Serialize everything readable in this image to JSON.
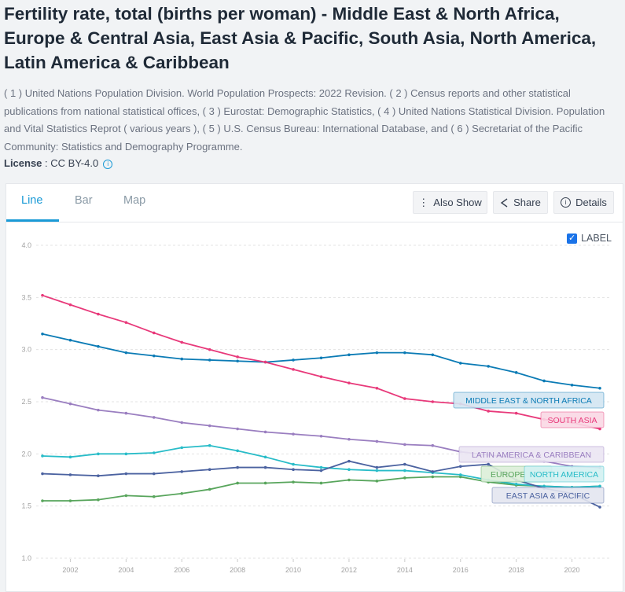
{
  "header": {
    "title": "Fertility rate, total (births per woman) - Middle East & North Africa, Europe & Central Asia, East Asia & Pacific, South Asia, North America, Latin America & Caribbean",
    "sources": "( 1 ) United Nations Population Division. World Population Prospects: 2022 Revision. ( 2 ) Census reports and other statistical publications from national statistical offices, ( 3 ) Eurostat: Demographic Statistics, ( 4 ) United Nations Statistical Division. Population and Vital Statistics Reprot ( various years ), ( 5 ) U.S. Census Bureau: International Database, and ( 6 ) Secretariat of the Pacific Community: Statistics and Demography Programme.",
    "license_label": "License",
    "license_value": " : CC BY-4.0",
    "info_icon": "info-icon"
  },
  "tabs": [
    {
      "label": "Line",
      "active": true
    },
    {
      "label": "Bar"
    },
    {
      "label": "Map"
    }
  ],
  "toolbar": {
    "also_show": "Also Show",
    "share": "Share",
    "details": "Details"
  },
  "label_toggle": {
    "label": "LABEL",
    "checked": true
  },
  "chart_data": {
    "type": "line",
    "title": "",
    "xlabel": "",
    "ylabel": "",
    "ylim": [
      1.0,
      4.0
    ],
    "xlim": [
      2001,
      2021
    ],
    "yticks": [
      "1.0",
      "1.5",
      "2.0",
      "2.5",
      "3.0",
      "3.5",
      "4.0"
    ],
    "xticks": [
      "2002",
      "2004",
      "2006",
      "2008",
      "2010",
      "2012",
      "2014",
      "2016",
      "2018",
      "2020"
    ],
    "grid": true,
    "x": [
      2001,
      2002,
      2003,
      2004,
      2005,
      2006,
      2007,
      2008,
      2009,
      2010,
      2011,
      2012,
      2013,
      2014,
      2015,
      2016,
      2017,
      2018,
      2019,
      2020,
      2021
    ],
    "series": [
      {
        "name": "MIDDLE EAST & NORTH AFRICA",
        "color": "#0b7bb5",
        "bg": "#d3e6f2",
        "values": [
          3.15,
          3.09,
          3.03,
          2.97,
          2.94,
          2.91,
          2.9,
          2.89,
          2.88,
          2.9,
          2.92,
          2.95,
          2.97,
          2.97,
          2.95,
          2.87,
          2.84,
          2.78,
          2.7,
          2.66,
          2.63
        ]
      },
      {
        "name": "SOUTH ASIA",
        "color": "#e8397a",
        "bg": "#f9d8e4",
        "values": [
          3.52,
          3.43,
          3.34,
          3.26,
          3.16,
          3.07,
          3.0,
          2.93,
          2.88,
          2.81,
          2.74,
          2.68,
          2.63,
          2.53,
          2.5,
          2.48,
          2.41,
          2.39,
          2.33,
          2.3,
          2.24
        ]
      },
      {
        "name": "LATIN AMERICA & CARIBBEAN",
        "color": "#9a7ec0",
        "bg": "#ebe5f3",
        "values": [
          2.54,
          2.48,
          2.42,
          2.39,
          2.35,
          2.3,
          2.27,
          2.24,
          2.21,
          2.19,
          2.17,
          2.14,
          2.12,
          2.09,
          2.08,
          2.02,
          1.99,
          1.96,
          1.93,
          1.88,
          1.87
        ]
      },
      {
        "name": "EUROPE",
        "color": "#58a55c",
        "bg": "#dbeed8",
        "values": [
          1.55,
          1.55,
          1.56,
          1.6,
          1.59,
          1.62,
          1.66,
          1.72,
          1.72,
          1.73,
          1.72,
          1.75,
          1.74,
          1.77,
          1.78,
          1.78,
          1.73,
          1.7,
          1.69,
          1.68,
          1.69
        ]
      },
      {
        "name": "NORTH AMERICA",
        "color": "#28bcc8",
        "bg": "#d3f1f2",
        "values": [
          1.98,
          1.97,
          2.0,
          2.0,
          2.01,
          2.06,
          2.08,
          2.03,
          1.97,
          1.9,
          1.87,
          1.85,
          1.84,
          1.84,
          1.82,
          1.8,
          1.75,
          1.71,
          1.69,
          1.68,
          1.69
        ]
      },
      {
        "name": "EAST ASIA & PACIFIC",
        "color": "#4b62a0",
        "bg": "#e3e5ef",
        "values": [
          1.81,
          1.8,
          1.79,
          1.81,
          1.81,
          1.83,
          1.85,
          1.87,
          1.87,
          1.85,
          1.84,
          1.93,
          1.87,
          1.9,
          1.83,
          1.88,
          1.9,
          1.75,
          1.67,
          1.62,
          1.49
        ]
      }
    ]
  }
}
